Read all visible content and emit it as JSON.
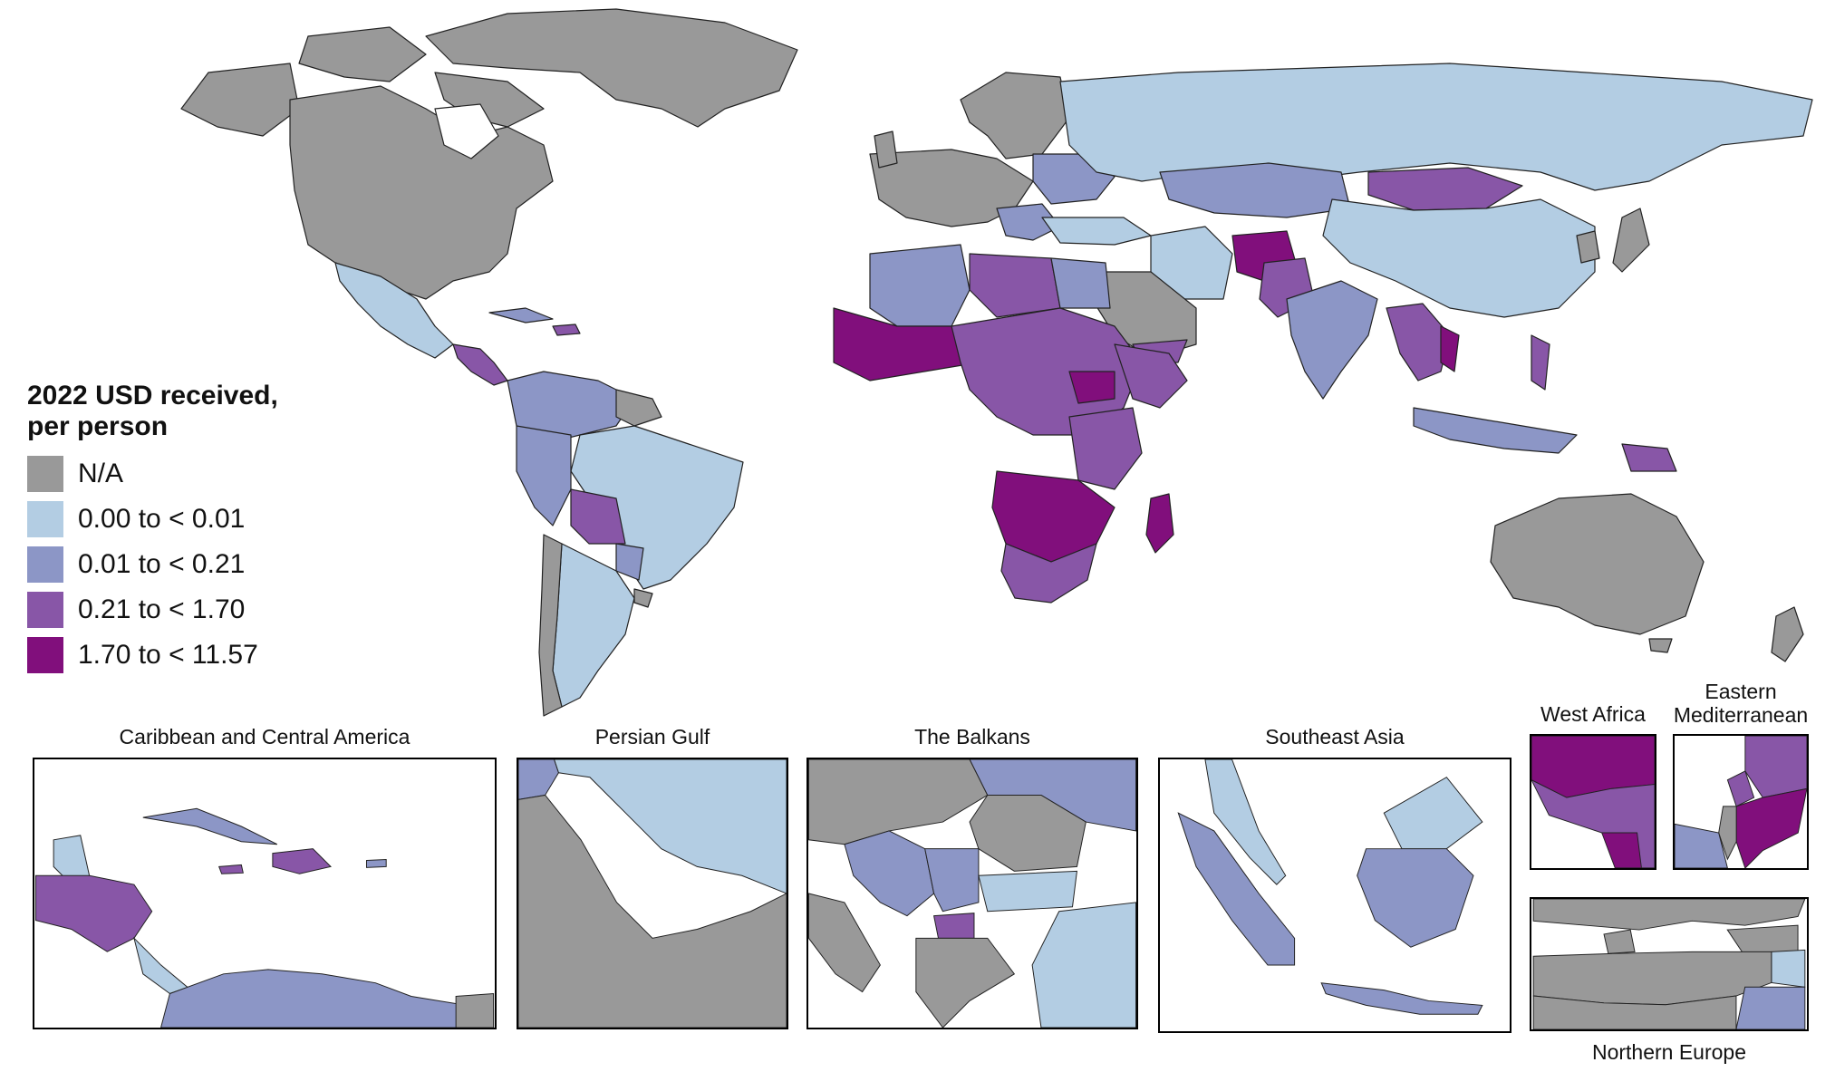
{
  "legend": {
    "title_line1": "2022 USD received,",
    "title_line2": "per person",
    "items": [
      {
        "label": "N/A",
        "color": "#999999"
      },
      {
        "label": "0.00 to < 0.01",
        "color": "#b3cde3"
      },
      {
        "label": "0.01 to < 0.21",
        "color": "#8c96c6"
      },
      {
        "label": "0.21 to < 1.70",
        "color": "#8856a7"
      },
      {
        "label": "1.70 to < 11.57",
        "color": "#810f7c"
      }
    ]
  },
  "insets": {
    "caribbean": "Caribbean and Central America",
    "persian_gulf": "Persian Gulf",
    "balkans": "The Balkans",
    "southeast_asia": "Southeast Asia",
    "west_africa": "West Africa",
    "east_med_line1": "Eastern",
    "east_med_line2": "Mediterranean",
    "northern_europe": "Northern Europe"
  },
  "colors": {
    "na": "#999999",
    "c1": "#b3cde3",
    "c2": "#8c96c6",
    "c3": "#8856a7",
    "c4": "#810f7c",
    "border": "#222222"
  }
}
